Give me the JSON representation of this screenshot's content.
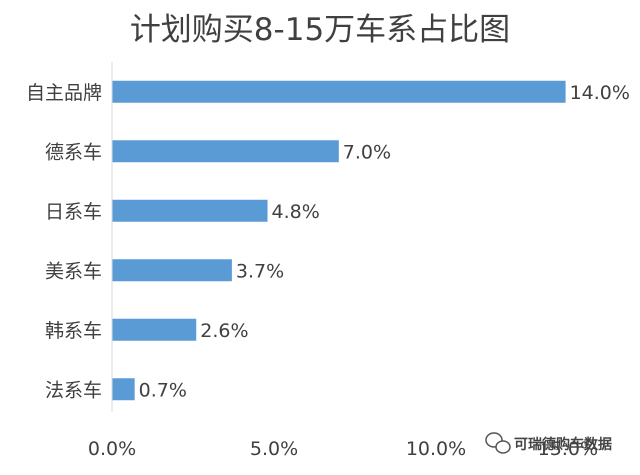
{
  "chart_data": {
    "type": "bar",
    "orientation": "horizontal",
    "title": "计划购买8-15万车系占比图",
    "categories": [
      "自主品牌",
      "德系车",
      "日系车",
      "美系车",
      "韩系车",
      "法系车"
    ],
    "values": [
      14.0,
      7.0,
      4.8,
      3.7,
      2.6,
      0.7
    ],
    "data_labels": [
      "14.0%",
      "7.0%",
      "4.8%",
      "3.7%",
      "2.6%",
      "0.7%"
    ],
    "xlim": [
      0,
      15
    ],
    "x_ticks": [
      0,
      5,
      10,
      15
    ],
    "x_tick_labels": [
      "0.0%",
      "5.0%",
      "10.0%",
      "15.0%"
    ],
    "grid": false,
    "legend": "none",
    "bar_color": "#5b9bd5"
  },
  "watermark": {
    "text": "可瑞德购车数据",
    "icon": "wechat-icon"
  }
}
